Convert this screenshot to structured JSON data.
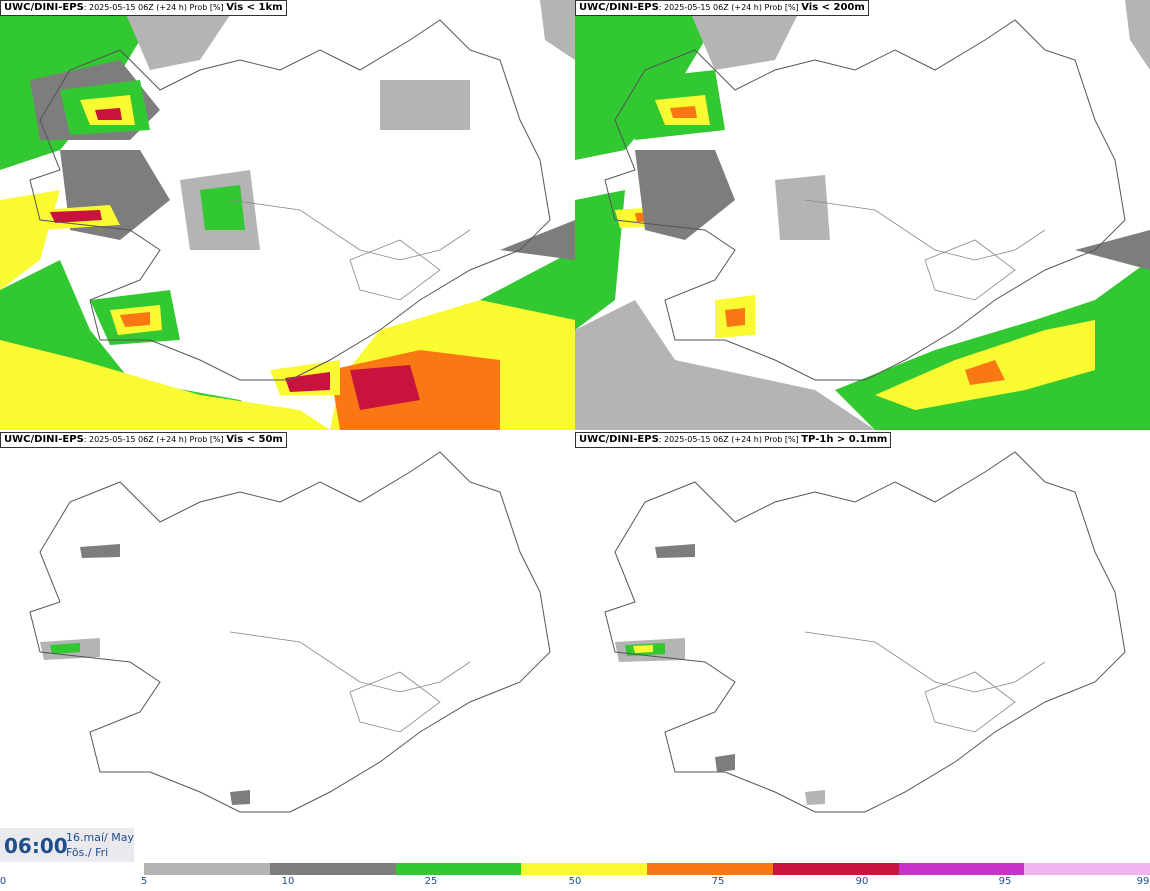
{
  "panels": [
    {
      "model": "UWC/DINI-EPS",
      "run": ": 2025-05-15 06Z (+24 h) Prob [%] ",
      "param": "Vis < 1km"
    },
    {
      "model": "UWC/DINI-EPS",
      "run": ": 2025-05-15 06Z (+24 h) Prob [%] ",
      "param": "Vis < 200m"
    },
    {
      "model": "UWC/DINI-EPS",
      "run": ": 2025-05-15 06Z (+24 h) Prob [%] ",
      "param": "Vis < 50m"
    },
    {
      "model": "UWC/DINI-EPS",
      "run": ": 2025-05-15 06Z (+24 h) Prob [%] ",
      "param": "TP-1h > 0.1mm"
    }
  ],
  "valid_time": {
    "hour": "06:00",
    "date": "16.maí/ May",
    "day": "Fös./ Fri"
  },
  "legend": {
    "ticks": [
      "0",
      "5",
      "10",
      "25",
      "50",
      "75",
      "90",
      "95",
      "99"
    ],
    "colors": [
      "#b4b4b4",
      "#7d7d7d",
      "#32c832",
      "#fafa32",
      "#fa7814",
      "#c8143c",
      "#c832c8",
      "#f0b4f0"
    ]
  },
  "map_colors": {
    "outline": "#555555",
    "water_line": "#888888",
    "p5": "#b4b4b4",
    "p10": "#7d7d7d",
    "p25": "#32c832",
    "p50": "#fafa32",
    "p75": "#fa7814",
    "p90": "#c8143c",
    "p95": "#c832c8"
  }
}
